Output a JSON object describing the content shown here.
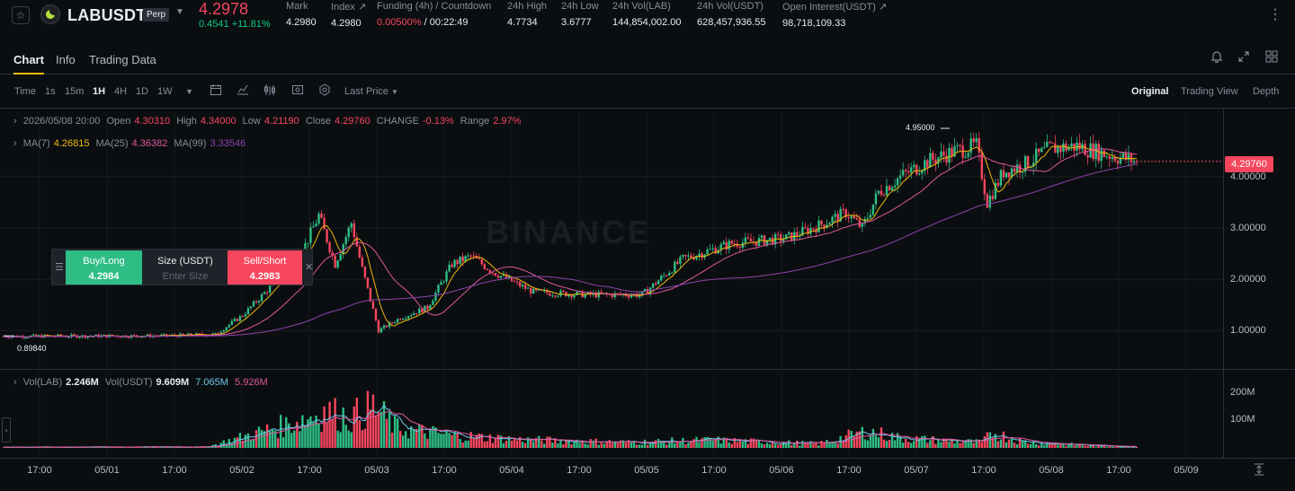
{
  "header": {
    "symbol": "LABUSDT",
    "contract_badge": "Perp",
    "last_price": "4.2978",
    "change_line": "0.4541 +11.81%",
    "stats": [
      {
        "label": "Mark",
        "value": "4.2980"
      },
      {
        "label": "Index ↗",
        "value": "4.2980"
      },
      {
        "label": "Funding (4h) / Countdown",
        "value_red": "0.00500%",
        "value": " / 00:22:49"
      },
      {
        "label": "24h High",
        "value": "4.7734"
      },
      {
        "label": "24h Low",
        "value": "3.6777"
      },
      {
        "label": "24h Vol(LAB)",
        "value": "144,854,002.00"
      },
      {
        "label": "24h Vol(USDT)",
        "value": "628,457,936.55"
      },
      {
        "label": "Open Interest(USDT) ↗",
        "value": "98,718,109.33"
      }
    ],
    "icons": {
      "favorite": "star-icon",
      "logo": "token-logo-icon",
      "more": "more-icon"
    }
  },
  "tabs": {
    "chart": "Chart",
    "info": "Info",
    "trading_data": "Trading Data"
  },
  "tab_icons": [
    "bell-icon",
    "expand-icon",
    "grid-icon"
  ],
  "toolbar": {
    "time": "Time",
    "intervals": [
      "1s",
      "15m",
      "1H",
      "4H",
      "1D",
      "1W"
    ],
    "selected_interval": "1H",
    "price_type": "Last Price",
    "views": [
      "Original",
      "Trading View",
      "Depth"
    ],
    "selected_view": "Original"
  },
  "legend": {
    "ohlc": {
      "date": "2026/05/08 20:00",
      "open_label": "Open",
      "open": "4.30310",
      "high_label": "High",
      "high": "4.34000",
      "low_label": "Low",
      "low": "4.21190",
      "close_label": "Close",
      "close": "4.29760",
      "change_label": "CHANGE",
      "change": "-0.13%",
      "range_label": "Range",
      "range": "2.97%"
    },
    "ma": {
      "ma7_label": "MA(7)",
      "ma7": "4.26815",
      "ma25_label": "MA(25)",
      "ma25": "4.36382",
      "ma99_label": "MA(99)",
      "ma99": "3.33546"
    },
    "vol": {
      "lab_label": "Vol(LAB)",
      "lab": "2.246M",
      "usdt_label": "Vol(USDT)",
      "usdt": "9.609M",
      "ma1": "7.065M",
      "ma2": "5.926M"
    }
  },
  "order_panel": {
    "buy_label": "Buy/Long",
    "buy_price": "4.2984",
    "size_label": "Size (USDT)",
    "size_placeholder": "Enter Size",
    "sell_label": "Sell/Short",
    "sell_price": "4.2983"
  },
  "watermark": "BINANCE",
  "annotations": {
    "high": "4.95000",
    "low": "0.89840"
  },
  "current_price_tag": "4.29760",
  "colors": {
    "up": "#2ebd85",
    "down": "#f6465d",
    "ma7": "#f0b90b",
    "ma25": "#e0589e",
    "ma99": "#8e44ad",
    "vol_ma1": "#6ec8e8",
    "vol_ma2": "#e0589e"
  },
  "chart_data": {
    "type": "candlestick",
    "interval": "1H",
    "y_ticks": [
      "4.00000",
      "3.00000",
      "2.00000",
      "1.00000"
    ],
    "y_tick_values": [
      4.0,
      3.0,
      2.0,
      1.0
    ],
    "x_ticks": [
      "17:00",
      "05/01",
      "17:00",
      "05/02",
      "17:00",
      "05/03",
      "17:00",
      "05/04",
      "17:00",
      "05/05",
      "17:00",
      "05/06",
      "17:00",
      "05/07",
      "17:00",
      "05/08",
      "17:00",
      "05/09"
    ],
    "vol_ticks": [
      "200M",
      "100M"
    ],
    "vol_tick_values": [
      200,
      100
    ],
    "price_anchors": [
      {
        "t": 0,
        "p": 0.89
      },
      {
        "t": 60,
        "p": 0.9
      },
      {
        "t": 78,
        "p": 0.93
      },
      {
        "t": 88,
        "p": 1.3
      },
      {
        "t": 100,
        "p": 1.95
      },
      {
        "t": 110,
        "p": 2.55
      },
      {
        "t": 116,
        "p": 3.25
      },
      {
        "t": 122,
        "p": 2.3
      },
      {
        "t": 128,
        "p": 3.1
      },
      {
        "t": 132,
        "p": 2.2
      },
      {
        "t": 138,
        "p": 1.0
      },
      {
        "t": 146,
        "p": 1.25
      },
      {
        "t": 156,
        "p": 1.45
      },
      {
        "t": 165,
        "p": 2.3
      },
      {
        "t": 172,
        "p": 2.45
      },
      {
        "t": 180,
        "p": 2.15
      },
      {
        "t": 195,
        "p": 1.75
      },
      {
        "t": 215,
        "p": 1.7
      },
      {
        "t": 235,
        "p": 1.7
      },
      {
        "t": 250,
        "p": 2.4
      },
      {
        "t": 268,
        "p": 2.7
      },
      {
        "t": 288,
        "p": 2.8
      },
      {
        "t": 300,
        "p": 3.05
      },
      {
        "t": 310,
        "p": 3.3
      },
      {
        "t": 316,
        "p": 3.0
      },
      {
        "t": 322,
        "p": 3.7
      },
      {
        "t": 330,
        "p": 4.0
      },
      {
        "t": 340,
        "p": 4.3
      },
      {
        "t": 350,
        "p": 4.5
      },
      {
        "t": 358,
        "p": 4.6
      },
      {
        "t": 362,
        "p": 3.5
      },
      {
        "t": 368,
        "p": 4.1
      },
      {
        "t": 376,
        "p": 4.25
      },
      {
        "t": 385,
        "p": 4.55
      },
      {
        "t": 395,
        "p": 4.6
      },
      {
        "t": 405,
        "p": 4.45
      },
      {
        "t": 417,
        "p": 4.3
      }
    ],
    "volume_anchors": [
      {
        "t": 0,
        "v": 3
      },
      {
        "t": 75,
        "v": 4
      },
      {
        "t": 90,
        "v": 45
      },
      {
        "t": 105,
        "v": 85
      },
      {
        "t": 118,
        "v": 130
      },
      {
        "t": 128,
        "v": 110
      },
      {
        "t": 136,
        "v": 145
      },
      {
        "t": 145,
        "v": 70
      },
      {
        "t": 165,
        "v": 45
      },
      {
        "t": 190,
        "v": 30
      },
      {
        "t": 230,
        "v": 20
      },
      {
        "t": 260,
        "v": 28
      },
      {
        "t": 300,
        "v": 15
      },
      {
        "t": 318,
        "v": 60
      },
      {
        "t": 330,
        "v": 35
      },
      {
        "t": 360,
        "v": 20
      },
      {
        "t": 364,
        "v": 55
      },
      {
        "t": 375,
        "v": 22
      },
      {
        "t": 400,
        "v": 8
      },
      {
        "t": 417,
        "v": 4
      }
    ],
    "candle_count": 418,
    "last_candle": {
      "open": 4.3031,
      "high": 4.34,
      "low": 4.2119,
      "close": 4.2976
    },
    "high_marker": 4.95,
    "low_marker": 0.8984,
    "ma_last": {
      "ma7": 4.26815,
      "ma25": 4.36382,
      "ma99": 3.33546
    }
  }
}
